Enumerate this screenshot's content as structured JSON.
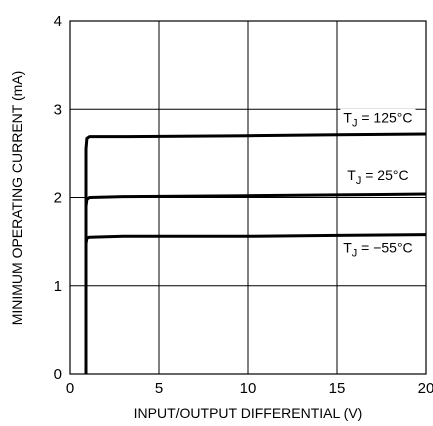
{
  "chart_data": {
    "type": "line",
    "title": "",
    "xlabel": "INPUT/OUTPUT DIFFERENTIAL (V)",
    "ylabel": "MINIMUM OPERATING CURRENT (mA)",
    "xlim": [
      0,
      20
    ],
    "ylim": [
      0,
      4
    ],
    "xticks": [
      0,
      5,
      10,
      15,
      20
    ],
    "yticks": [
      0,
      1,
      2,
      3,
      4
    ],
    "grid": true,
    "series": [
      {
        "name": "T_J = 125°C",
        "label": {
          "main": "T",
          "sub": "J",
          "rest": " = 125°C"
        },
        "label_at": {
          "x": 17.3,
          "y": 2.87
        },
        "points": [
          [
            0.9,
            0
          ],
          [
            0.9,
            2.55
          ],
          [
            0.95,
            2.67
          ],
          [
            1.1,
            2.69
          ],
          [
            3,
            2.69
          ],
          [
            10,
            2.7
          ],
          [
            15,
            2.71
          ],
          [
            20,
            2.72
          ]
        ]
      },
      {
        "name": "T_J = 25°C",
        "label": {
          "main": "T",
          "sub": "J",
          "rest": " = 25°C"
        },
        "label_at": {
          "x": 17.3,
          "y": 2.22
        },
        "points": [
          [
            0.9,
            0
          ],
          [
            0.9,
            1.9
          ],
          [
            0.95,
            1.98
          ],
          [
            1.1,
            2.0
          ],
          [
            3,
            2.01
          ],
          [
            10,
            2.02
          ],
          [
            15,
            2.03
          ],
          [
            20,
            2.04
          ]
        ]
      },
      {
        "name": "T_J = −55°C",
        "label": {
          "main": "T",
          "sub": "J",
          "rest": " = −55°C"
        },
        "label_at": {
          "x": 17.3,
          "y": 1.4
        },
        "points": [
          [
            0.9,
            0
          ],
          [
            0.9,
            1.48
          ],
          [
            0.95,
            1.54
          ],
          [
            1.1,
            1.55
          ],
          [
            3,
            1.56
          ],
          [
            10,
            1.56
          ],
          [
            15,
            1.57
          ],
          [
            20,
            1.58
          ]
        ]
      }
    ]
  }
}
